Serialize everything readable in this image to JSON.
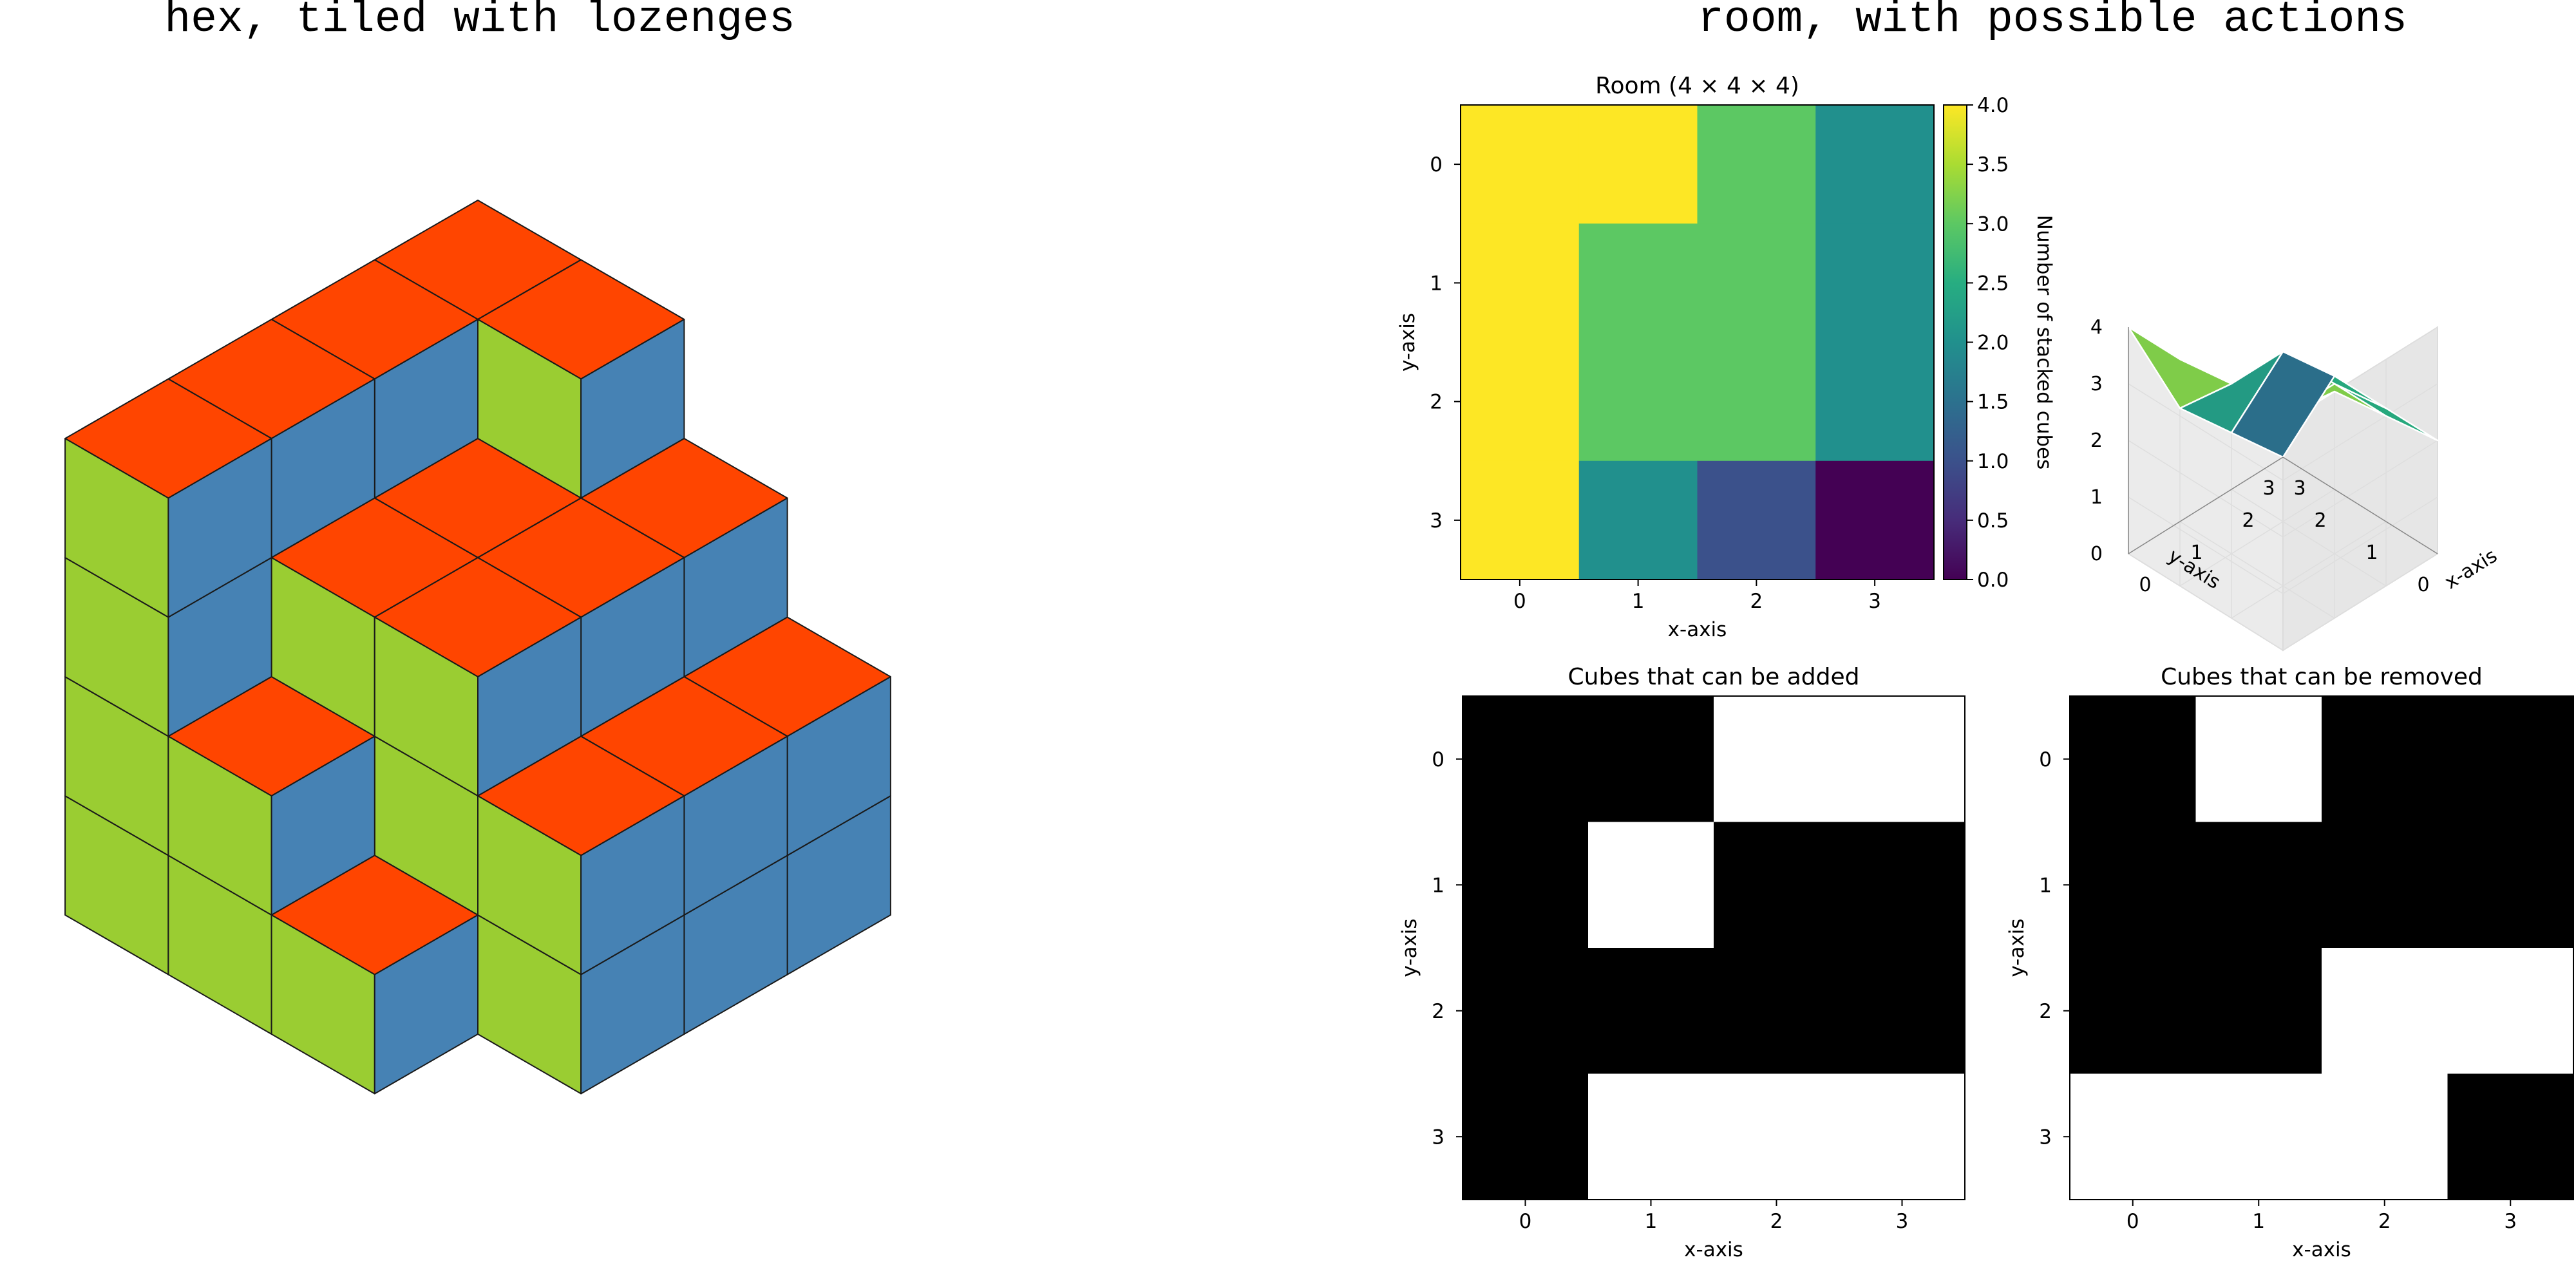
{
  "titles": {
    "left": "hex, tiled with lozenges",
    "right": "room, with possible actions"
  },
  "colors": {
    "top": "#ff4500",
    "left_face": "#9acd32",
    "right_face": "#4682b4",
    "edge": "#1a1a1a"
  },
  "chart_data": [
    {
      "type": "heatmap",
      "title": "Room (4 × 4 × 4)",
      "xlabel": "x-axis",
      "ylabel": "y-axis",
      "x_ticks": [
        "0",
        "1",
        "2",
        "3"
      ],
      "y_ticks": [
        "0",
        "1",
        "2",
        "3"
      ],
      "values": [
        [
          4,
          4,
          3,
          2
        ],
        [
          4,
          3,
          3,
          2
        ],
        [
          4,
          3,
          3,
          2
        ],
        [
          4,
          2,
          1,
          0
        ]
      ],
      "colormap": "viridis",
      "vmin": 0,
      "vmax": 4,
      "colorbar": {
        "label": "Number of stacked cubes",
        "ticks": [
          "0.0",
          "0.5",
          "1.0",
          "1.5",
          "2.0",
          "2.5",
          "3.0",
          "3.5",
          "4.0"
        ]
      }
    },
    {
      "type": "surface",
      "xlabel": "x-axis",
      "ylabel": "y-axis",
      "x_ticks": [
        "0",
        "1",
        "2",
        "3"
      ],
      "y_ticks": [
        "0",
        "1",
        "2",
        "3"
      ],
      "z_ticks": [
        "0",
        "1",
        "2",
        "3",
        "4"
      ],
      "values": [
        [
          4,
          4,
          3,
          2
        ],
        [
          4,
          3,
          3,
          2
        ],
        [
          4,
          3,
          3,
          2
        ],
        [
          4,
          2,
          1,
          0
        ]
      ],
      "colormap": "viridis"
    },
    {
      "type": "heatmap",
      "title": "Cubes that can be added",
      "xlabel": "x-axis",
      "ylabel": "y-axis",
      "x_ticks": [
        "0",
        "1",
        "2",
        "3"
      ],
      "y_ticks": [
        "0",
        "1",
        "2",
        "3"
      ],
      "values": [
        [
          0,
          0,
          1,
          1
        ],
        [
          0,
          1,
          0,
          0
        ],
        [
          0,
          0,
          0,
          0
        ],
        [
          0,
          1,
          1,
          1
        ]
      ],
      "colormap": "gray"
    },
    {
      "type": "heatmap",
      "title": "Cubes that can be removed",
      "xlabel": "x-axis",
      "ylabel": "y-axis",
      "x_ticks": [
        "0",
        "1",
        "2",
        "3"
      ],
      "y_ticks": [
        "0",
        "1",
        "2",
        "3"
      ],
      "values": [
        [
          0,
          1,
          0,
          0
        ],
        [
          0,
          0,
          0,
          0
        ],
        [
          0,
          0,
          1,
          1
        ],
        [
          1,
          1,
          1,
          0
        ]
      ],
      "colormap": "gray"
    }
  ]
}
